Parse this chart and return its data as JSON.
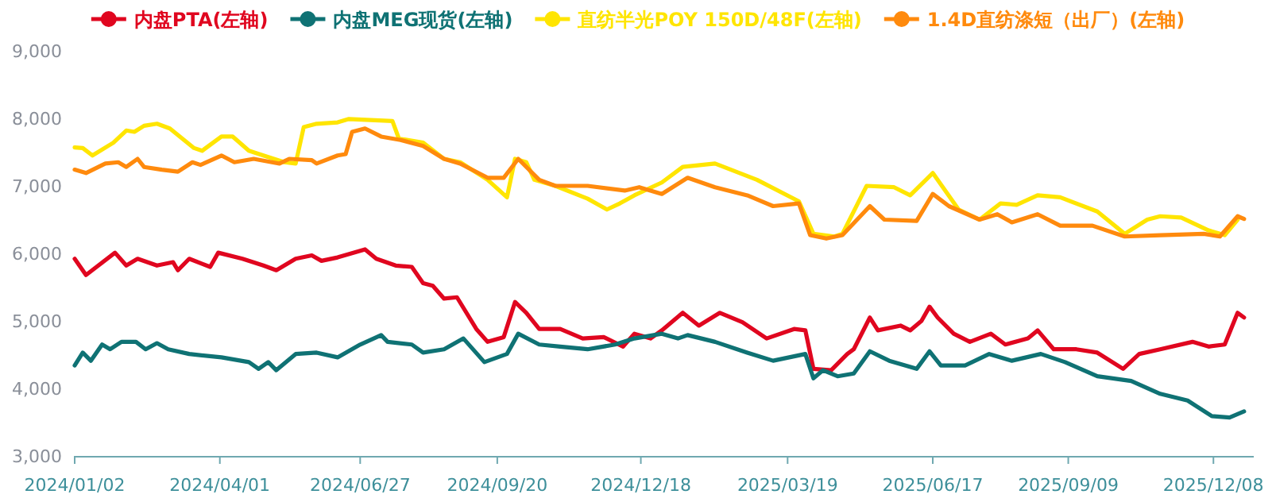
{
  "chart_data": {
    "type": "line",
    "legend": "top",
    "line_style": "solid",
    "xlim": [
      "2024-01-02",
      "2026-01-02"
    ],
    "xticks": [
      {
        "value": "2024-01-02",
        "label": "2024/01/02"
      },
      {
        "value": "2024-04-01",
        "label": "2024/04/01"
      },
      {
        "value": "2024-06-27",
        "label": "2024/06/27"
      },
      {
        "value": "2024-09-20",
        "label": "2024/09/20"
      },
      {
        "value": "2024-12-18",
        "label": "2024/12/18"
      },
      {
        "value": "2025-03-19",
        "label": "2025/03/19"
      },
      {
        "value": "2025-06-17",
        "label": "2025/06/17"
      },
      {
        "value": "2025-09-09",
        "label": "2025/09/09"
      },
      {
        "value": "2025-12-08",
        "label": "2025/12/08"
      }
    ],
    "ylim": [
      3000,
      9000
    ],
    "yticks": [
      {
        "value": 3000,
        "label": "3,000"
      },
      {
        "value": 4000,
        "label": "4,000"
      },
      {
        "value": 5000,
        "label": "5,000"
      },
      {
        "value": 6000,
        "label": "6,000"
      },
      {
        "value": 7000,
        "label": "7,000"
      },
      {
        "value": 8000,
        "label": "8,000"
      },
      {
        "value": 9000,
        "label": "9,000"
      }
    ],
    "series": [
      {
        "name": "内盘PTA(左轴)",
        "color": "#e0061f",
        "x": [
          "2024-01-02",
          "2024-01-09",
          "2024-01-27",
          "2024-02-03",
          "2024-02-10",
          "2024-02-22",
          "2024-03-03",
          "2024-03-06",
          "2024-03-13",
          "2024-03-26",
          "2024-03-31",
          "2024-04-15",
          "2024-04-28",
          "2024-05-06",
          "2024-05-18",
          "2024-05-28",
          "2024-06-03",
          "2024-06-13",
          "2024-06-30",
          "2024-07-07",
          "2024-07-19",
          "2024-07-29",
          "2024-08-05",
          "2024-08-11",
          "2024-08-18",
          "2024-08-26",
          "2024-09-07",
          "2024-09-14",
          "2024-09-24",
          "2024-10-01",
          "2024-10-08",
          "2024-10-16",
          "2024-10-29",
          "2024-11-12",
          "2024-11-25",
          "2024-12-07",
          "2024-12-14",
          "2024-12-24",
          "2024-12-31",
          "2025-01-13",
          "2025-01-23",
          "2025-02-05",
          "2025-02-19",
          "2025-03-06",
          "2025-03-23",
          "2025-03-30",
          "2025-04-04",
          "2025-04-15",
          "2025-04-25",
          "2025-04-29",
          "2025-05-09",
          "2025-05-14",
          "2025-05-28",
          "2025-06-03",
          "2025-06-10",
          "2025-06-15",
          "2025-06-20",
          "2025-06-30",
          "2025-07-10",
          "2025-07-23",
          "2025-08-01",
          "2025-08-15",
          "2025-08-21",
          "2025-08-31",
          "2025-09-14",
          "2025-09-27",
          "2025-10-13",
          "2025-10-23",
          "2025-11-05",
          "2025-11-25",
          "2025-12-05",
          "2025-12-15",
          "2025-12-23",
          "2025-12-27"
        ],
        "values": [
          5920,
          5680,
          6010,
          5820,
          5920,
          5820,
          5870,
          5750,
          5920,
          5800,
          6010,
          5920,
          5820,
          5750,
          5920,
          5970,
          5890,
          5940,
          6060,
          5920,
          5820,
          5800,
          5560,
          5520,
          5330,
          5350,
          4880,
          4690,
          4760,
          5280,
          5120,
          4880,
          4880,
          4740,
          4760,
          4620,
          4810,
          4740,
          4860,
          5120,
          4930,
          5120,
          4980,
          4740,
          4880,
          4860,
          4290,
          4270,
          4510,
          4580,
          5050,
          4860,
          4930,
          4860,
          5000,
          5210,
          5050,
          4810,
          4690,
          4810,
          4650,
          4740,
          4860,
          4580,
          4580,
          4530,
          4290,
          4510,
          4580,
          4690,
          4620,
          4650,
          5120,
          5050
        ]
      },
      {
        "name": "内盘MEG现货(左轴)",
        "color": "#0f7274",
        "x": [
          "2024-01-02",
          "2024-01-07",
          "2024-01-12",
          "2024-01-19",
          "2024-01-24",
          "2024-01-31",
          "2024-02-09",
          "2024-02-15",
          "2024-02-22",
          "2024-02-29",
          "2024-03-13",
          "2024-04-02",
          "2024-04-19",
          "2024-04-25",
          "2024-05-01",
          "2024-05-06",
          "2024-05-18",
          "2024-05-31",
          "2024-06-13",
          "2024-06-27",
          "2024-07-10",
          "2024-07-14",
          "2024-07-29",
          "2024-08-05",
          "2024-08-18",
          "2024-08-30",
          "2024-09-12",
          "2024-09-26",
          "2024-10-03",
          "2024-10-16",
          "2024-10-29",
          "2024-11-15",
          "2024-12-02",
          "2024-12-14",
          "2024-12-31",
          "2025-01-10",
          "2025-01-16",
          "2025-02-02",
          "2025-02-22",
          "2025-03-10",
          "2025-03-30",
          "2025-04-04",
          "2025-04-10",
          "2025-04-19",
          "2025-04-29",
          "2025-05-09",
          "2025-05-21",
          "2025-06-07",
          "2025-06-15",
          "2025-06-22",
          "2025-07-07",
          "2025-07-22",
          "2025-08-05",
          "2025-08-23",
          "2025-09-07",
          "2025-09-27",
          "2025-10-18",
          "2025-11-05",
          "2025-11-22",
          "2025-12-07",
          "2025-12-18",
          "2025-12-27"
        ],
        "values": [
          4340,
          4530,
          4410,
          4650,
          4580,
          4690,
          4690,
          4580,
          4670,
          4580,
          4510,
          4460,
          4390,
          4290,
          4390,
          4270,
          4510,
          4530,
          4460,
          4650,
          4790,
          4690,
          4650,
          4530,
          4580,
          4740,
          4390,
          4510,
          4810,
          4650,
          4620,
          4580,
          4650,
          4740,
          4810,
          4740,
          4790,
          4690,
          4530,
          4410,
          4510,
          4150,
          4270,
          4180,
          4220,
          4550,
          4410,
          4290,
          4550,
          4340,
          4340,
          4510,
          4410,
          4510,
          4390,
          4180,
          4110,
          3920,
          3820,
          3590,
          3570,
          3660
        ]
      },
      {
        "name": "直纺半光POY 150D/48F(左轴)",
        "color": "#ffe500",
        "x": [
          "2024-01-02",
          "2024-01-07",
          "2024-01-13",
          "2024-01-26",
          "2024-02-03",
          "2024-02-08",
          "2024-02-14",
          "2024-02-22",
          "2024-03-01",
          "2024-03-16",
          "2024-03-21",
          "2024-04-02",
          "2024-04-09",
          "2024-04-19",
          "2024-04-28",
          "2024-05-11",
          "2024-05-18",
          "2024-05-23",
          "2024-05-31",
          "2024-06-13",
          "2024-06-20",
          "2024-07-17",
          "2024-07-21",
          "2024-08-05",
          "2024-08-18",
          "2024-08-28",
          "2024-09-14",
          "2024-09-26",
          "2024-10-01",
          "2024-10-08",
          "2024-10-13",
          "2024-10-26",
          "2024-11-15",
          "2024-11-27",
          "2024-12-05",
          "2024-12-14",
          "2024-12-31",
          "2025-01-13",
          "2025-02-02",
          "2025-02-28",
          "2025-03-26",
          "2025-04-04",
          "2025-04-17",
          "2025-04-22",
          "2025-05-07",
          "2025-05-24",
          "2025-06-03",
          "2025-06-17",
          "2025-07-03",
          "2025-07-16",
          "2025-07-29",
          "2025-08-08",
          "2025-08-21",
          "2025-09-04",
          "2025-09-27",
          "2025-10-14",
          "2025-10-28",
          "2025-11-05",
          "2025-11-18",
          "2025-12-05",
          "2025-12-15",
          "2025-12-23"
        ],
        "values": [
          7570,
          7560,
          7450,
          7640,
          7820,
          7800,
          7890,
          7920,
          7850,
          7560,
          7520,
          7730,
          7730,
          7520,
          7450,
          7350,
          7330,
          7870,
          7920,
          7940,
          7990,
          7960,
          7700,
          7640,
          7400,
          7350,
          7090,
          6830,
          7400,
          7350,
          7090,
          7000,
          6810,
          6650,
          6740,
          6860,
          7050,
          7280,
          7330,
          7090,
          6770,
          6290,
          6250,
          6290,
          7000,
          6980,
          6860,
          7190,
          6650,
          6500,
          6740,
          6720,
          6860,
          6830,
          6620,
          6290,
          6500,
          6550,
          6530,
          6340,
          6270,
          6500
        ]
      },
      {
        "name": "1.4D直纺涤短（出厂）(左轴)",
        "color": "#ff8a0d",
        "x": [
          "2024-01-02",
          "2024-01-09",
          "2024-01-21",
          "2024-01-29",
          "2024-02-03",
          "2024-02-10",
          "2024-02-14",
          "2024-02-25",
          "2024-03-06",
          "2024-03-15",
          "2024-03-20",
          "2024-04-02",
          "2024-04-10",
          "2024-04-22",
          "2024-05-08",
          "2024-05-14",
          "2024-05-28",
          "2024-05-31",
          "2024-06-13",
          "2024-06-18",
          "2024-06-22",
          "2024-06-30",
          "2024-07-10",
          "2024-07-22",
          "2024-08-05",
          "2024-08-18",
          "2024-08-28",
          "2024-09-14",
          "2024-09-24",
          "2024-10-03",
          "2024-10-16",
          "2024-10-26",
          "2024-11-15",
          "2024-12-08",
          "2024-12-17",
          "2024-12-31",
          "2025-01-16",
          "2025-02-02",
          "2025-02-22",
          "2025-03-10",
          "2025-03-26",
          "2025-04-02",
          "2025-04-12",
          "2025-04-22",
          "2025-05-09",
          "2025-05-18",
          "2025-06-07",
          "2025-06-17",
          "2025-06-27",
          "2025-07-16",
          "2025-07-27",
          "2025-08-05",
          "2025-08-21",
          "2025-09-04",
          "2025-09-24",
          "2025-10-14",
          "2025-11-05",
          "2025-12-02",
          "2025-12-12",
          "2025-12-23",
          "2025-12-27"
        ],
        "values": [
          7240,
          7190,
          7330,
          7350,
          7280,
          7400,
          7280,
          7240,
          7210,
          7350,
          7310,
          7450,
          7350,
          7400,
          7330,
          7400,
          7380,
          7330,
          7450,
          7470,
          7800,
          7850,
          7730,
          7680,
          7590,
          7400,
          7330,
          7120,
          7120,
          7400,
          7090,
          7000,
          7000,
          6930,
          6980,
          6880,
          7120,
          6980,
          6860,
          6700,
          6740,
          6270,
          6220,
          6270,
          6700,
          6500,
          6480,
          6880,
          6700,
          6500,
          6580,
          6460,
          6580,
          6410,
          6410,
          6250,
          6270,
          6290,
          6250,
          6550,
          6510
        ]
      }
    ]
  }
}
